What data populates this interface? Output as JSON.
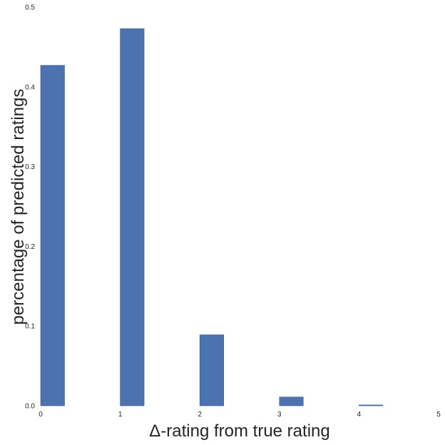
{
  "chart_data": {
    "type": "bar",
    "title": "",
    "xlabel": "Δ-rating from true rating",
    "ylabel": "percentage of predicted ratings",
    "xlim": [
      0,
      5
    ],
    "ylim": [
      0,
      0.5
    ],
    "x_ticks": [
      "0",
      "1",
      "2",
      "3",
      "4",
      "5"
    ],
    "y_ticks": [
      "0.0",
      "0.1",
      "0.2",
      "0.3",
      "0.4",
      "0.5"
    ],
    "grid": false,
    "legend": "none",
    "bar_width": 0.3,
    "bar_color": "#4c72b0",
    "bars": [
      {
        "x": 0,
        "value": 0.427
      },
      {
        "x": 1,
        "value": 0.473
      },
      {
        "x": 2,
        "value": 0.089
      },
      {
        "x": 3,
        "value": 0.011
      },
      {
        "x": 4,
        "value": 0.001
      }
    ]
  }
}
